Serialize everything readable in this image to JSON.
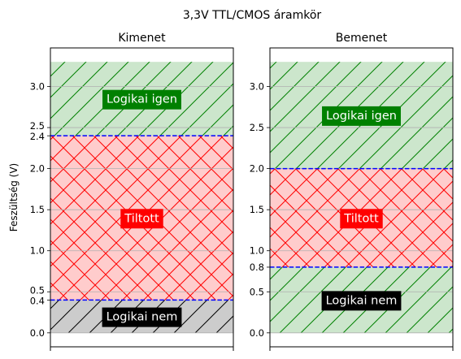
{
  "chart_data": {
    "suptitle": "3,3V TTL/CMOS áramkör",
    "ylabel": "Feszültség (V)",
    "ylim": [
      -0.17,
      3.47
    ],
    "grid": "y",
    "panels": [
      {
        "type": "area",
        "title": "Kimenet",
        "yticks": [
          "0.0",
          "0.4",
          "0.5",
          "1.0",
          "1.5",
          "2.0",
          "2.4",
          "2.5",
          "3.0"
        ],
        "regions": [
          {
            "name": "Logikai nem",
            "y0": 0.0,
            "y1": 0.4,
            "fill": "#cccccc",
            "hatch": "forward",
            "hatch_color": "#000000",
            "label_bg": "#000000"
          },
          {
            "name": "Tiltott",
            "y0": 0.4,
            "y1": 2.4,
            "fill": "#ffcccc",
            "hatch": "cross",
            "hatch_color": "#ff0000",
            "label_bg": "#ff0000"
          },
          {
            "name": "Logikai igen",
            "y0": 2.4,
            "y1": 3.3,
            "fill": "#cce6cc",
            "hatch": "forward",
            "hatch_color": "#008000",
            "label_bg": "#008000"
          }
        ],
        "thresholds": [
          0.4,
          2.4
        ]
      },
      {
        "type": "area",
        "title": "Bemenet",
        "yticks": [
          "0.0",
          "0.5",
          "0.8",
          "1.0",
          "1.5",
          "2.0",
          "2.5",
          "3.0"
        ],
        "regions": [
          {
            "name": "Logikai nem",
            "y0": 0.0,
            "y1": 0.8,
            "fill": "#cce6cc",
            "hatch": "forward",
            "hatch_color": "#008000",
            "label_bg": "#000000"
          },
          {
            "name": "Tiltott",
            "y0": 0.8,
            "y1": 2.0,
            "fill": "#ffcccc",
            "hatch": "cross",
            "hatch_color": "#ff0000",
            "label_bg": "#ff0000"
          },
          {
            "name": "Logikai igen",
            "y0": 2.0,
            "y1": 3.3,
            "fill": "#cce6cc",
            "hatch": "forward",
            "hatch_color": "#008000",
            "label_bg": "#008000"
          }
        ],
        "thresholds": [
          0.8,
          2.0
        ]
      }
    ],
    "colors": {
      "threshold": "#0000ff",
      "grid": "#b0b0b0",
      "label_text": "#ffffff"
    }
  }
}
